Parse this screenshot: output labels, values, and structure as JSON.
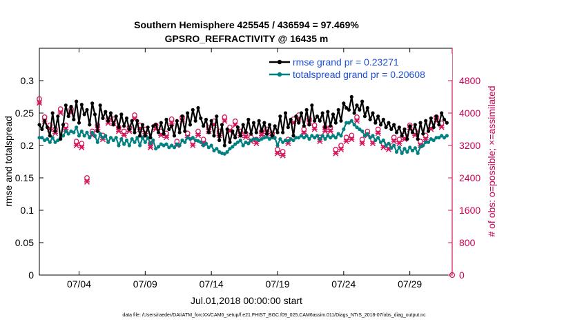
{
  "chart_data": {
    "type": "line",
    "title": "Southern Hemisphere 425545 / 436594 = 97.469%",
    "subtitle": "GPSRO_REFRACTIVITY @ 16435 m",
    "xlabel": "Jul.01,2018 00:00:00 start",
    "ylabel": "rmse and totalspread",
    "y2label": "# of obs: o=possible; ×=assimilated",
    "xlim": [
      1,
      32.2
    ],
    "ylim": [
      0,
      0.35
    ],
    "y2lim": [
      0,
      5600
    ],
    "x_tick_values": [
      4,
      9,
      14,
      19,
      24,
      29
    ],
    "x_tick_labels": [
      "07/04",
      "07/09",
      "07/14",
      "07/19",
      "07/24",
      "07/29"
    ],
    "y_ticks": [
      "0",
      "0.05",
      "0.1",
      "0.15",
      "0.2",
      "0.25",
      "0.3"
    ],
    "y2_ticks": [
      "0",
      "800",
      "1600",
      "2400",
      "3200",
      "4000",
      "4800"
    ],
    "legend": [
      "rmse grand pr = 0.23271",
      "totalspread grand pr = 0.20608"
    ],
    "footer": "data file: /Users/raeder/DAI/ATM_forcXX/CAM6_setup/f.e21.FHIST_BGC.f09_025.CAM6assim.011/Diags_NTrS_2018-07/obs_diag_output.nc",
    "colors": {
      "rmse": "#000000",
      "spread": "#008080",
      "obs": "#d4145a"
    },
    "series": [
      {
        "name": "rmse",
        "values": [
          0.232,
          0.225,
          0.238,
          0.228,
          0.215,
          0.25,
          0.222,
          0.245,
          0.21,
          0.232,
          0.262,
          0.245,
          0.26,
          0.24,
          0.268,
          0.235,
          0.263,
          0.248,
          0.255,
          0.232,
          0.265,
          0.248,
          0.222,
          0.262,
          0.242,
          0.252,
          0.238,
          0.25,
          0.232,
          0.245,
          0.228,
          0.248,
          0.23,
          0.242,
          0.225,
          0.238,
          0.22,
          0.238,
          0.215,
          0.232,
          0.215,
          0.228,
          0.212,
          0.23,
          0.232,
          0.22,
          0.235,
          0.218,
          0.24,
          0.225,
          0.23,
          0.215,
          0.238,
          0.22,
          0.245,
          0.222,
          0.25,
          0.232,
          0.255,
          0.238,
          0.258,
          0.242,
          0.23,
          0.24,
          0.22,
          0.238,
          0.215,
          0.245,
          0.208,
          0.232,
          0.2,
          0.225,
          0.205,
          0.222,
          0.212,
          0.228,
          0.215,
          0.232,
          0.22,
          0.24,
          0.218,
          0.235,
          0.22,
          0.238,
          0.222,
          0.235,
          0.218,
          0.232,
          0.215,
          0.23,
          0.22,
          0.245,
          0.22,
          0.25,
          0.228,
          0.24,
          0.215,
          0.245,
          0.235,
          0.25,
          0.23,
          0.255,
          0.232,
          0.262,
          0.238,
          0.245,
          0.238,
          0.25,
          0.228,
          0.252,
          0.23,
          0.248,
          0.235,
          0.255,
          0.238,
          0.265,
          0.258,
          0.255,
          0.275,
          0.25,
          0.262,
          0.255,
          0.268,
          0.245,
          0.258,
          0.24,
          0.25,
          0.235,
          0.245,
          0.232,
          0.24,
          0.228,
          0.235,
          0.225,
          0.232,
          0.22,
          0.228,
          0.215,
          0.225,
          0.21,
          0.23,
          0.22,
          0.232,
          0.21,
          0.235,
          0.218,
          0.238,
          0.222,
          0.242,
          0.228,
          0.245,
          0.232,
          0.25,
          0.24,
          0.235
        ]
      },
      {
        "name": "totalspread",
        "values": [
          0.212,
          0.212,
          0.208,
          0.21,
          0.205,
          0.212,
          0.205,
          0.208,
          0.212,
          0.215,
          0.222,
          0.218,
          0.222,
          0.22,
          0.228,
          0.215,
          0.222,
          0.215,
          0.22,
          0.212,
          0.22,
          0.215,
          0.205,
          0.218,
          0.212,
          0.215,
          0.205,
          0.212,
          0.208,
          0.212,
          0.2,
          0.21,
          0.202,
          0.208,
          0.2,
          0.21,
          0.205,
          0.212,
          0.2,
          0.212,
          0.205,
          0.212,
          0.203,
          0.208,
          0.195,
          0.198,
          0.202,
          0.2,
          0.202,
          0.197,
          0.2,
          0.197,
          0.202,
          0.2,
          0.208,
          0.205,
          0.212,
          0.21,
          0.212,
          0.208,
          0.207,
          0.205,
          0.2,
          0.203,
          0.197,
          0.2,
          0.192,
          0.195,
          0.19,
          0.188,
          0.187,
          0.19,
          0.195,
          0.198,
          0.202,
          0.205,
          0.208,
          0.2,
          0.205,
          0.203,
          0.208,
          0.21,
          0.21,
          0.208,
          0.21,
          0.212,
          0.213,
          0.21,
          0.212,
          0.212,
          0.2,
          0.21,
          0.205,
          0.208,
          0.207,
          0.21,
          0.208,
          0.212,
          0.212,
          0.215,
          0.212,
          0.215,
          0.21,
          0.215,
          0.212,
          0.215,
          0.21,
          0.215,
          0.21,
          0.215,
          0.212,
          0.215,
          0.212,
          0.218,
          0.215,
          0.225,
          0.235,
          0.235,
          0.238,
          0.232,
          0.228,
          0.225,
          0.222,
          0.215,
          0.218,
          0.212,
          0.215,
          0.208,
          0.212,
          0.205,
          0.208,
          0.2,
          0.203,
          0.196,
          0.2,
          0.19,
          0.197,
          0.188,
          0.195,
          0.19,
          0.197,
          0.192,
          0.196,
          0.188,
          0.198,
          0.2,
          0.205,
          0.205,
          0.21,
          0.208,
          0.212,
          0.212,
          0.215,
          0.212,
          0.215
        ]
      },
      {
        "name": "obs_possible",
        "values": [
          4350,
          3500,
          3900,
          3500,
          3700,
          3850,
          3600,
          4050,
          4100,
          3900,
          3700,
          3550,
          4100,
          3900,
          3300,
          3150,
          3250,
          3000,
          2400,
          3250,
          3550,
          3850,
          3700,
          3600,
          3450,
          3750,
          3850,
          3550,
          3850,
          3550,
          3650,
          3400,
          3550,
          3750,
          3650,
          3550,
          3950,
          3800,
          3700,
          3550,
          3600,
          3450,
          3250,
          3400,
          3700,
          3250,
          3550,
          3350,
          3500,
          3300,
          3850,
          3450,
          3300,
          3750,
          3900,
          3950,
          3500,
          3650,
          3300,
          3900,
          3550,
          3800,
          3350,
          3700,
          3650,
          3550,
          3800,
          3650,
          3550,
          3400,
          3900,
          3800,
          3650,
          3550,
          3800,
          3300,
          3550,
          3650,
          3500,
          3550,
          3400,
          3700,
          3350,
          3550,
          3550,
          3750,
          3600,
          3850,
          3500,
          3900,
          3100,
          3050,
          3050,
          3100,
          3350,
          3300,
          3850,
          3600,
          3950,
          3350,
          3600,
          3400,
          3850,
          3500,
          3700,
          3950,
          3400,
          3450,
          3650,
          3300,
          3650,
          3250,
          3100,
          3150,
          3200,
          3200,
          3400,
          3550,
          3450,
          3350,
          3900,
          3450,
          3350,
          3300,
          3550,
          3650,
          3350,
          3500,
          3600,
          3650,
          3250,
          3550,
          3200,
          3550,
          3400,
          3400,
          3350,
          3550,
          3450,
          3450,
          3700,
          3300,
          3550,
          3650,
          3300,
          3600,
          3450,
          3550,
          3700,
          3600,
          3900,
          3650,
          3750,
          3900
        ]
      },
      {
        "name": "obs_assimilated",
        "values": [
          4250,
          3400,
          3800,
          3400,
          3600,
          3750,
          3500,
          3950,
          4000,
          3800,
          3600,
          3450,
          4000,
          3800,
          3200,
          3050,
          3150,
          2900,
          2300,
          3150,
          3450,
          3750,
          3600,
          3500,
          3350,
          3650,
          3750,
          3450,
          3750,
          3450,
          3550,
          3300,
          3450,
          3650,
          3550,
          3450,
          3850,
          3700,
          3600,
          3450,
          3500,
          3350,
          3150,
          3300,
          3600,
          3150,
          3450,
          3250,
          3400,
          3200,
          3750,
          3350,
          3200,
          3650,
          3800,
          3850,
          3400,
          3550,
          3200,
          3800,
          3450,
          3700,
          3250,
          3600,
          3550,
          3450,
          3700,
          3550,
          3450,
          3300,
          3800,
          3700,
          3550,
          3450,
          3700,
          3200,
          3450,
          3550,
          3400,
          3450,
          3300,
          3600,
          3250,
          3450,
          3450,
          3650,
          3500,
          3750,
          3400,
          3800,
          3000,
          2950,
          2950,
          3000,
          3250,
          3200,
          3750,
          3500,
          3850,
          3250,
          3500,
          3300,
          3750,
          3400,
          3600,
          3850,
          3300,
          3350,
          3550,
          3200,
          3550,
          3150,
          3000,
          3050,
          3100,
          3100,
          3300,
          3450,
          3350,
          3250,
          3800,
          3350,
          3250,
          3200,
          3450,
          3550,
          3250,
          3400,
          3500,
          3550,
          3150,
          3450,
          3100,
          3450,
          3300,
          3300,
          3250,
          3450,
          3350,
          3350,
          3600,
          3200,
          3450,
          3550,
          3200,
          3500,
          3350,
          3450,
          3600,
          3500,
          3800,
          3550,
          3650,
          3800
        ]
      }
    ],
    "series_x_start": 1.0,
    "series_x_step": 0.2
  }
}
